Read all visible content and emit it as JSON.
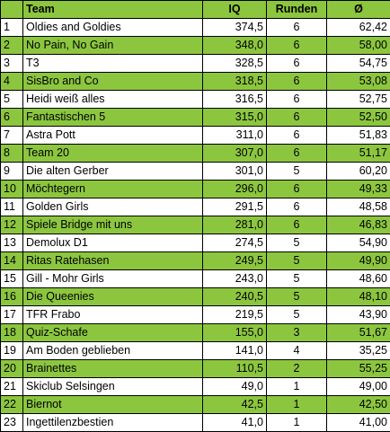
{
  "table": {
    "headers": {
      "rank": "",
      "team": "Team",
      "iq": "IQ",
      "rounds": "Runden",
      "avg": "Ø"
    },
    "colors": {
      "green": "#8cc63f",
      "white": "#ffffff",
      "border": "#000000"
    },
    "rows": [
      {
        "rank": "1",
        "team": "Oldies and Goldies",
        "iq": "374,5",
        "rounds": "6",
        "avg": "62,42"
      },
      {
        "rank": "2",
        "team": "No Pain, No Gain",
        "iq": "348,0",
        "rounds": "6",
        "avg": "58,00"
      },
      {
        "rank": "3",
        "team": "T3",
        "iq": "328,5",
        "rounds": "6",
        "avg": "54,75"
      },
      {
        "rank": "4",
        "team": "SisBro and Co",
        "iq": "318,5",
        "rounds": "6",
        "avg": "53,08"
      },
      {
        "rank": "5",
        "team": "Heidi weiß alles",
        "iq": "316,5",
        "rounds": "6",
        "avg": "52,75"
      },
      {
        "rank": "6",
        "team": "Fantastischen 5",
        "iq": "315,0",
        "rounds": "6",
        "avg": "52,50"
      },
      {
        "rank": "7",
        "team": "Astra Pott",
        "iq": "311,0",
        "rounds": "6",
        "avg": "51,83"
      },
      {
        "rank": "8",
        "team": "Team 20",
        "iq": "307,0",
        "rounds": "6",
        "avg": "51,17"
      },
      {
        "rank": "9",
        "team": "Die alten Gerber",
        "iq": "301,0",
        "rounds": "5",
        "avg": "60,20"
      },
      {
        "rank": "10",
        "team": "Möchtegern",
        "iq": "296,0",
        "rounds": "6",
        "avg": "49,33"
      },
      {
        "rank": "11",
        "team": "Golden Girls",
        "iq": "291,5",
        "rounds": "6",
        "avg": "48,58"
      },
      {
        "rank": "12",
        "team": "Spiele Bridge mit uns",
        "iq": "281,0",
        "rounds": "6",
        "avg": "46,83"
      },
      {
        "rank": "13",
        "team": "Demolux D1",
        "iq": "274,5",
        "rounds": "5",
        "avg": "54,90"
      },
      {
        "rank": "14",
        "team": "Ritas Ratehasen",
        "iq": "249,5",
        "rounds": "5",
        "avg": "49,90"
      },
      {
        "rank": "15",
        "team": "Gill - Mohr Girls",
        "iq": "243,0",
        "rounds": "5",
        "avg": "48,60"
      },
      {
        "rank": "16",
        "team": "Die Queenies",
        "iq": "240,5",
        "rounds": "5",
        "avg": "48,10"
      },
      {
        "rank": "17",
        "team": "TFR Frabo",
        "iq": "219,5",
        "rounds": "5",
        "avg": "43,90"
      },
      {
        "rank": "18",
        "team": "Quiz-Schafe",
        "iq": "155,0",
        "rounds": "3",
        "avg": "51,67"
      },
      {
        "rank": "19",
        "team": "Am Boden geblieben",
        "iq": "141,0",
        "rounds": "4",
        "avg": "35,25"
      },
      {
        "rank": "20",
        "team": "Brainettes",
        "iq": "110,5",
        "rounds": "2",
        "avg": "55,25"
      },
      {
        "rank": "21",
        "team": "Skiclub Selsingen",
        "iq": "49,0",
        "rounds": "1",
        "avg": "49,00"
      },
      {
        "rank": "22",
        "team": "Biernot",
        "iq": "42,5",
        "rounds": "1",
        "avg": "42,50"
      },
      {
        "rank": "23",
        "team": "Ingettilenzbestien",
        "iq": "41,0",
        "rounds": "1",
        "avg": "41,00"
      }
    ]
  }
}
